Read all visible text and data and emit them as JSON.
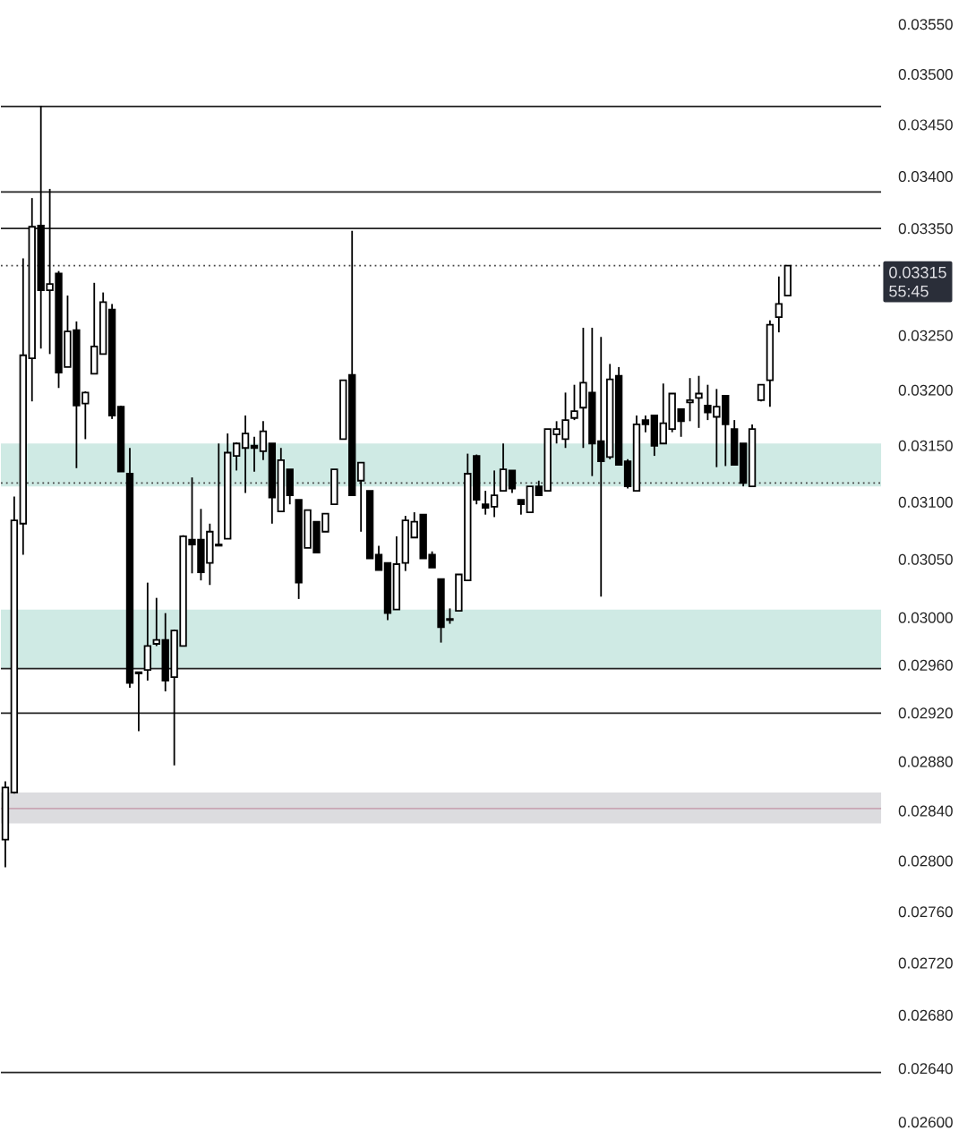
{
  "chart_data": {
    "type": "candlestick",
    "categories": [
      null,
      null,
      null,
      null,
      null,
      null,
      null,
      null,
      null,
      null,
      null,
      null,
      null,
      null,
      null,
      null,
      null,
      null,
      null,
      null,
      null,
      null,
      null,
      null,
      null,
      null,
      null,
      null,
      null,
      null,
      null,
      null,
      null,
      null,
      null,
      null,
      null,
      null,
      null,
      null,
      null,
      null,
      null,
      null,
      null,
      null,
      null,
      null,
      null,
      null,
      null,
      null,
      null,
      null,
      null,
      null,
      null,
      null,
      null,
      null,
      null,
      null,
      null,
      null,
      null,
      null,
      null,
      null,
      null,
      null,
      null,
      null,
      null,
      null,
      null,
      null,
      null,
      null,
      null,
      null,
      null,
      null,
      null,
      null,
      null,
      null,
      null,
      null,
      null,
      null,
      null,
      null,
      null,
      null,
      null,
      null,
      null,
      null,
      null
    ],
    "ohlc": [
      [
        0.02817,
        0.02864,
        0.02795,
        0.02859
      ],
      [
        0.02855,
        0.03105,
        0.02854,
        0.03084
      ],
      [
        0.03081,
        0.03322,
        0.03054,
        0.03232
      ],
      [
        0.03229,
        0.03379,
        0.0319,
        0.03352
      ],
      [
        0.03353,
        0.03469,
        0.03238,
        0.03292
      ],
      [
        0.03292,
        0.03388,
        0.03233,
        0.03298
      ],
      [
        0.03308,
        0.0331,
        0.03202,
        0.03216
      ],
      [
        0.03221,
        0.03287,
        0.03221,
        0.03254
      ],
      [
        0.03255,
        0.03263,
        0.0313,
        0.03186
      ],
      [
        0.03188,
        0.03199,
        0.03156,
        0.03198
      ],
      [
        0.03215,
        0.03299,
        0.03215,
        0.0324
      ],
      [
        0.03233,
        0.0329,
        0.03233,
        0.03281
      ],
      [
        0.03274,
        0.03279,
        0.03174,
        0.03177
      ],
      [
        0.03185,
        0.03186,
        0.03127,
        0.03127
      ],
      [
        0.03125,
        0.03148,
        0.02941,
        0.02945
      ],
      [
        0.02953,
        0.02954,
        0.02905,
        0.02954
      ],
      [
        0.02956,
        0.0303,
        0.02947,
        0.02976
      ],
      [
        0.02978,
        0.03017,
        0.02976,
        0.02981
      ],
      [
        0.02981,
        0.03004,
        0.02938,
        0.02947
      ],
      [
        0.0295,
        0.0299,
        0.02877,
        0.02989
      ],
      [
        0.02976,
        0.03071,
        0.02976,
        0.0307
      ],
      [
        0.03067,
        0.03122,
        0.03038,
        0.03063
      ],
      [
        0.03067,
        0.03094,
        0.03032,
        0.03039
      ],
      [
        0.03047,
        0.03081,
        0.03028,
        0.03074
      ],
      [
        0.03062,
        0.03152,
        0.03062,
        0.03063
      ],
      [
        0.03068,
        0.03161,
        0.03068,
        0.03144
      ],
      [
        0.03141,
        0.03153,
        0.03128,
        0.03152
      ],
      [
        0.03148,
        0.03177,
        0.03108,
        0.03161
      ],
      [
        0.0315,
        0.03158,
        0.03127,
        0.03148
      ],
      [
        0.03145,
        0.03172,
        0.03137,
        0.03163
      ],
      [
        0.03152,
        0.03152,
        0.03081,
        0.03104
      ],
      [
        0.03092,
        0.03148,
        0.03092,
        0.03137
      ],
      [
        0.03129,
        0.03129,
        0.03098,
        0.03106
      ],
      [
        0.03102,
        0.03102,
        0.03016,
        0.0303
      ],
      [
        0.0306,
        0.03093,
        0.0306,
        0.03093
      ],
      [
        0.03083,
        0.03083,
        0.03056,
        0.03056
      ],
      [
        0.03074,
        0.0309,
        0.03074,
        0.0309
      ],
      [
        0.03098,
        0.03129,
        0.03098,
        0.03129
      ],
      [
        0.03156,
        0.03209,
        0.03156,
        0.03209
      ],
      [
        0.03214,
        0.03348,
        0.03106,
        0.03106
      ],
      [
        0.03119,
        0.03135,
        0.03074,
        0.03135
      ],
      [
        0.0311,
        0.0311,
        0.03051,
        0.03051
      ],
      [
        0.03054,
        0.03062,
        0.03041,
        0.03041
      ],
      [
        0.03047,
        0.03047,
        0.02998,
        0.03004
      ],
      [
        0.03007,
        0.0307,
        0.03007,
        0.03046
      ],
      [
        0.03047,
        0.03088,
        0.0304,
        0.03084
      ],
      [
        0.03069,
        0.03091,
        0.03069,
        0.03083
      ],
      [
        0.03089,
        0.03089,
        0.03051,
        0.03051
      ],
      [
        0.03054,
        0.03057,
        0.03043,
        0.03043
      ],
      [
        0.03033,
        0.03033,
        0.02979,
        0.02992
      ],
      [
        0.02998,
        0.03008,
        0.02995,
        0.02999
      ],
      [
        0.03006,
        0.03037,
        0.03006,
        0.03037
      ],
      [
        0.03032,
        0.03143,
        0.03032,
        0.03125
      ],
      [
        0.03141,
        0.03142,
        0.03098,
        0.03102
      ],
      [
        0.03098,
        0.0311,
        0.03089,
        0.03095
      ],
      [
        0.03096,
        0.03128,
        0.03087,
        0.03106
      ],
      [
        0.0311,
        0.03152,
        0.0311,
        0.03129
      ],
      [
        0.03128,
        0.03128,
        0.03108,
        0.03112
      ],
      [
        0.03102,
        0.03102,
        0.03089,
        0.03098
      ],
      [
        0.03091,
        0.03114,
        0.03091,
        0.03114
      ],
      [
        0.03114,
        0.03119,
        0.03106,
        0.03106
      ],
      [
        0.0311,
        0.03165,
        0.0311,
        0.03165
      ],
      [
        0.0316,
        0.03172,
        0.03152,
        0.03165
      ],
      [
        0.03156,
        0.03198,
        0.03148,
        0.03173
      ],
      [
        0.03175,
        0.03205,
        0.03173,
        0.03181
      ],
      [
        0.03184,
        0.03257,
        0.03148,
        0.03207
      ],
      [
        0.03198,
        0.03257,
        0.03123,
        0.03152
      ],
      [
        0.03154,
        0.03249,
        0.03018,
        0.03136
      ],
      [
        0.0314,
        0.03224,
        0.03138,
        0.0321
      ],
      [
        0.03213,
        0.03221,
        0.03133,
        0.03133
      ],
      [
        0.03136,
        0.03138,
        0.03112,
        0.03114
      ],
      [
        0.0311,
        0.03177,
        0.0311,
        0.03169
      ],
      [
        0.03173,
        0.03177,
        0.03162,
        0.03169
      ],
      [
        0.03177,
        0.03177,
        0.03141,
        0.0315
      ],
      [
        0.03152,
        0.03206,
        0.03152,
        0.0317
      ],
      [
        0.03165,
        0.03197,
        0.03162,
        0.03197
      ],
      [
        0.03183,
        0.03183,
        0.03158,
        0.03172
      ],
      [
        0.03189,
        0.03211,
        0.03172,
        0.03191
      ],
      [
        0.03193,
        0.03213,
        0.03166,
        0.03197
      ],
      [
        0.03186,
        0.03205,
        0.03173,
        0.0318
      ],
      [
        0.03176,
        0.03201,
        0.03131,
        0.03185
      ],
      [
        0.03195,
        0.03195,
        0.03132,
        0.03169
      ],
      [
        0.03165,
        0.03173,
        0.03133,
        0.03133
      ],
      [
        0.03152,
        0.03152,
        0.03114,
        0.03117
      ],
      [
        0.03114,
        0.03169,
        0.03114,
        0.03165
      ],
      [
        0.03191,
        0.03205,
        0.0319,
        0.03205
      ],
      [
        0.03209,
        0.03264,
        0.03185,
        0.0326
      ],
      [
        0.03267,
        0.03305,
        0.03253,
        0.03279
      ],
      [
        0.03287,
        0.03315,
        0.03287,
        0.03315
      ],
      null,
      null,
      null,
      null,
      null,
      null,
      null,
      null,
      null,
      null
    ],
    "log": "y",
    "tick_labels": "y",
    "ylim": [
      0.026,
      0.0355
    ],
    "yticks": [
      {
        "value": 0.026,
        "label": "0.02600"
      },
      {
        "value": 0.0264,
        "label": "0.02640"
      },
      {
        "value": 0.0268,
        "label": "0.02680"
      },
      {
        "value": 0.0272,
        "label": "0.02720"
      },
      {
        "value": 0.0276,
        "label": "0.02760"
      },
      {
        "value": 0.028,
        "label": "0.02800"
      },
      {
        "value": 0.0284,
        "label": "0.02840"
      },
      {
        "value": 0.0288,
        "label": "0.02880"
      },
      {
        "value": 0.0292,
        "label": "0.02920"
      },
      {
        "value": 0.0296,
        "label": "0.02960"
      },
      {
        "value": 0.03,
        "label": "0.03000"
      },
      {
        "value": 0.0305,
        "label": "0.03050"
      },
      {
        "value": 0.031,
        "label": "0.03100"
      },
      {
        "value": 0.0315,
        "label": "0.03150"
      },
      {
        "value": 0.032,
        "label": "0.03200"
      },
      {
        "value": 0.0325,
        "label": "0.03250"
      },
      {
        "value": 0.0335,
        "label": "0.03350"
      },
      {
        "value": 0.034,
        "label": "0.03400"
      },
      {
        "value": 0.0345,
        "label": "0.03450"
      },
      {
        "value": 0.035,
        "label": "0.03500"
      },
      {
        "value": 0.0355,
        "label": "0.03550"
      }
    ],
    "bands": [
      {
        "axis": "y",
        "from": 0.0283,
        "to": 0.02855,
        "color": "#dcdcdf"
      },
      {
        "axis": "y",
        "from": 0.03114,
        "to": 0.03152,
        "color": "#cfeae4"
      },
      {
        "axis": "y",
        "from": 0.02957,
        "to": 0.03007,
        "color": "#cfeae4"
      }
    ],
    "ref_lines": [
      {
        "axis": "y",
        "value": 0.03468,
        "color": "#222222",
        "line_style": "solid"
      },
      {
        "axis": "y",
        "value": 0.03385,
        "color": "#222222",
        "line_style": "solid"
      },
      {
        "axis": "y",
        "value": 0.0335,
        "color": "#222222",
        "line_style": "solid"
      },
      {
        "axis": "y",
        "value": 0.02957,
        "color": "#222222",
        "line_style": "solid"
      },
      {
        "axis": "y",
        "value": 0.0292,
        "color": "#222222",
        "line_style": "solid"
      },
      {
        "axis": "y",
        "value": 0.02637,
        "color": "#222222",
        "line_style": "solid"
      },
      {
        "axis": "y",
        "value": 0.02842,
        "color": "#c9a6b4",
        "line_style": "solid"
      },
      {
        "axis": "y",
        "value": 0.03117,
        "color": "#444444",
        "line_style": "dotted"
      },
      {
        "axis": "y",
        "value": 0.03315,
        "color": "#444444",
        "line_style": "dotted",
        "label": "0.03315"
      }
    ],
    "annotations": [
      "55:45"
    ]
  }
}
